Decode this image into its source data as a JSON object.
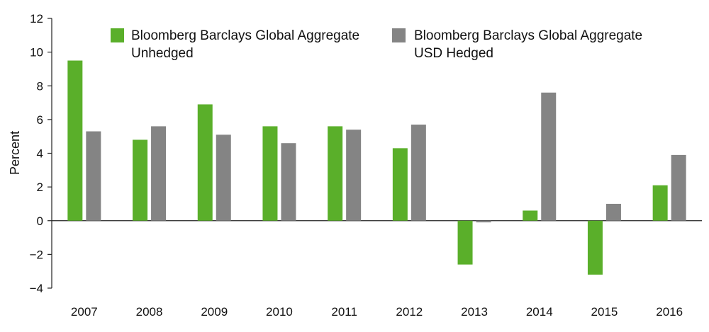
{
  "chart_data": {
    "type": "bar",
    "categories": [
      "2007",
      "2008",
      "2009",
      "2010",
      "2011",
      "2012",
      "2013",
      "2014",
      "2015",
      "2016"
    ],
    "series": [
      {
        "name": "Bloomberg Barclays Global Aggregate Unhedged",
        "name_lines": [
          "Bloomberg Barclays Global Aggregate",
          "Unhedged"
        ],
        "color": "#5aaf2a",
        "values": [
          9.5,
          4.8,
          6.9,
          5.6,
          5.6,
          4.3,
          -2.6,
          0.6,
          -3.2,
          2.1
        ]
      },
      {
        "name": "Bloomberg Barclays Global Aggregate USD Hedged",
        "name_lines": [
          "Bloomberg Barclays Global Aggregate",
          "USD Hedged"
        ],
        "color": "#848484",
        "values": [
          5.3,
          5.6,
          5.1,
          4.6,
          5.4,
          5.7,
          -0.1,
          7.6,
          1.0,
          3.9
        ]
      }
    ],
    "title": "",
    "xlabel": "",
    "ylabel": "Percent",
    "ylim": [
      -4,
      12
    ],
    "yticks": [
      -4,
      -2,
      0,
      2,
      4,
      6,
      8,
      10,
      12
    ],
    "ytick_labels": [
      "−4",
      "−2",
      "0",
      "2",
      "4",
      "6",
      "8",
      "10",
      "12"
    ],
    "grid": false,
    "legend_position": "top"
  }
}
